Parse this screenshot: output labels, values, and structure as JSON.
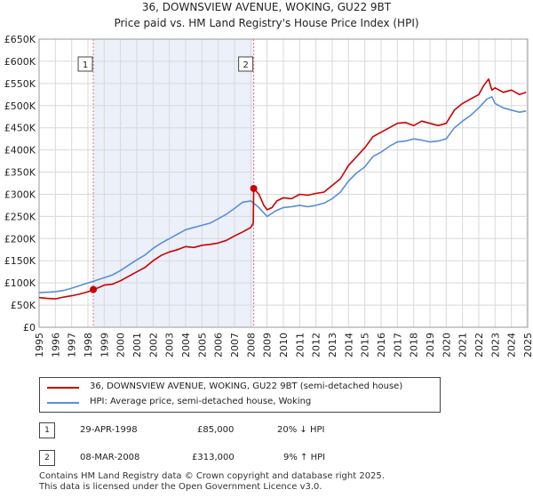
{
  "chart_data": {
    "type": "line",
    "title": "36, DOWNSVIEW AVENUE, WOKING, GU22 9BT",
    "subtitle": "Price paid vs. HM Land Registry's House Price Index (HPI)",
    "xlim": [
      1995.0,
      2025.0
    ],
    "ylim": [
      0,
      650000
    ],
    "y_ticks": [
      0,
      50000,
      100000,
      150000,
      200000,
      250000,
      300000,
      350000,
      400000,
      450000,
      500000,
      550000,
      600000,
      650000
    ],
    "y_tick_labels": [
      "£0",
      "£50K",
      "£100K",
      "£150K",
      "£200K",
      "£250K",
      "£300K",
      "£350K",
      "£400K",
      "£450K",
      "£500K",
      "£550K",
      "£600K",
      "£650K"
    ],
    "x_ticks": [
      "1995",
      "1996",
      "1997",
      "1998",
      "1999",
      "2000",
      "2001",
      "2002",
      "2003",
      "2004",
      "2005",
      "2006",
      "2007",
      "2008",
      "2009",
      "2010",
      "2011",
      "2012",
      "2013",
      "2014",
      "2015",
      "2016",
      "2017",
      "2018",
      "2019",
      "2020",
      "2021",
      "2022",
      "2023",
      "2024",
      "2025"
    ],
    "grid": true,
    "shaded_period": [
      1998.33,
      2008.18
    ],
    "series": [
      {
        "name": "36, DOWNSVIEW AVENUE, WOKING, GU22 9BT (semi-detached house)",
        "color": "#cc0000",
        "x": [
          1995.0,
          1995.5,
          1996.0,
          1996.5,
          1997.0,
          1997.5,
          1998.0,
          1998.33,
          1998.7,
          1999.0,
          1999.5,
          2000.0,
          2000.5,
          2001.0,
          2001.5,
          2002.0,
          2002.5,
          2003.0,
          2003.5,
          2004.0,
          2004.5,
          2005.0,
          2005.5,
          2006.0,
          2006.5,
          2007.0,
          2007.5,
          2008.0,
          2008.15,
          2008.18,
          2008.5,
          2008.8,
          2009.0,
          2009.3,
          2009.6,
          2010.0,
          2010.5,
          2011.0,
          2011.5,
          2012.0,
          2012.5,
          2013.0,
          2013.5,
          2014.0,
          2014.5,
          2015.0,
          2015.5,
          2016.0,
          2016.5,
          2017.0,
          2017.5,
          2018.0,
          2018.5,
          2019.0,
          2019.5,
          2020.0,
          2020.5,
          2021.0,
          2021.5,
          2022.0,
          2022.3,
          2022.6,
          2022.8,
          2023.0,
          2023.5,
          2024.0,
          2024.5,
          2024.9
        ],
        "values": [
          67000,
          65000,
          64000,
          68000,
          71000,
          75000,
          80000,
          85000,
          90000,
          95000,
          97000,
          105000,
          115000,
          125000,
          135000,
          150000,
          162000,
          170000,
          175000,
          182000,
          180000,
          185000,
          187000,
          190000,
          196000,
          206000,
          215000,
          225000,
          235000,
          313000,
          300000,
          275000,
          265000,
          270000,
          285000,
          292000,
          290000,
          300000,
          298000,
          302000,
          305000,
          320000,
          335000,
          365000,
          385000,
          405000,
          430000,
          440000,
          450000,
          460000,
          462000,
          455000,
          465000,
          460000,
          455000,
          460000,
          490000,
          505000,
          515000,
          525000,
          545000,
          560000,
          535000,
          540000,
          530000,
          535000,
          525000,
          530000
        ]
      },
      {
        "name": "HPI: Average price, semi-detached house, Woking",
        "color": "#5b8ed6",
        "x": [
          1995.0,
          1995.5,
          1996.0,
          1996.5,
          1997.0,
          1997.5,
          1998.0,
          1998.5,
          1999.0,
          1999.5,
          2000.0,
          2000.5,
          2001.0,
          2001.5,
          2002.0,
          2002.5,
          2003.0,
          2003.5,
          2004.0,
          2004.5,
          2005.0,
          2005.5,
          2006.0,
          2006.5,
          2007.0,
          2007.5,
          2008.0,
          2008.5,
          2009.0,
          2009.5,
          2010.0,
          2010.5,
          2011.0,
          2011.5,
          2012.0,
          2012.5,
          2013.0,
          2013.5,
          2014.0,
          2014.5,
          2015.0,
          2015.5,
          2016.0,
          2016.5,
          2017.0,
          2017.5,
          2018.0,
          2018.5,
          2019.0,
          2019.5,
          2020.0,
          2020.5,
          2021.0,
          2021.5,
          2022.0,
          2022.5,
          2022.8,
          2023.0,
          2023.5,
          2024.0,
          2024.5,
          2024.9
        ],
        "values": [
          78000,
          79000,
          80000,
          83000,
          88000,
          94000,
          100000,
          106000,
          112000,
          118000,
          128000,
          140000,
          152000,
          163000,
          178000,
          190000,
          200000,
          210000,
          220000,
          225000,
          230000,
          235000,
          245000,
          255000,
          268000,
          282000,
          285000,
          270000,
          250000,
          262000,
          270000,
          272000,
          275000,
          272000,
          275000,
          280000,
          290000,
          305000,
          330000,
          348000,
          362000,
          385000,
          395000,
          408000,
          418000,
          420000,
          425000,
          422000,
          418000,
          420000,
          425000,
          450000,
          465000,
          478000,
          495000,
          515000,
          520000,
          505000,
          495000,
          490000,
          485000,
          488000
        ]
      }
    ],
    "sales": [
      {
        "label": "1",
        "year": 1998.33,
        "price": 85000
      },
      {
        "label": "2",
        "year": 2008.18,
        "price": 313000
      }
    ]
  },
  "legend": {
    "red_label": "36, DOWNSVIEW AVENUE, WOKING, GU22 9BT (semi-detached house)",
    "blue_label": "HPI: Average price, semi-detached house, Woking"
  },
  "table": [
    {
      "num": "1",
      "date": "29-APR-1998",
      "price": "£85,000",
      "hpi": "20% ↓ HPI"
    },
    {
      "num": "2",
      "date": "08-MAR-2008",
      "price": "£313,000",
      "hpi": "9% ↑ HPI"
    }
  ],
  "footer": {
    "line1": "Contains HM Land Registry data © Crown copyright and database right 2025.",
    "line2": "This data is licensed under the Open Government Licence v3.0."
  }
}
